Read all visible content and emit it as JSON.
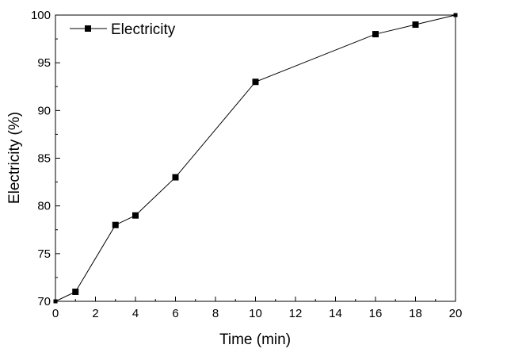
{
  "chart_data": {
    "type": "line",
    "title": "",
    "xlabel": "Time (min)",
    "ylabel": "Electricity (%)",
    "xlim": [
      0,
      20
    ],
    "ylim": [
      70,
      100
    ],
    "x_ticks": [
      0,
      2,
      4,
      6,
      8,
      10,
      12,
      14,
      16,
      18,
      20
    ],
    "y_ticks": [
      70,
      75,
      80,
      85,
      90,
      95,
      100
    ],
    "grid": false,
    "legend_position": "top-left",
    "series": [
      {
        "name": "Electricity",
        "marker": "square",
        "color": "#000000",
        "x": [
          0,
          1,
          3,
          4,
          6,
          10,
          16,
          18,
          20
        ],
        "y": [
          70,
          71,
          78,
          79,
          83,
          93,
          98,
          99,
          100
        ]
      }
    ]
  }
}
